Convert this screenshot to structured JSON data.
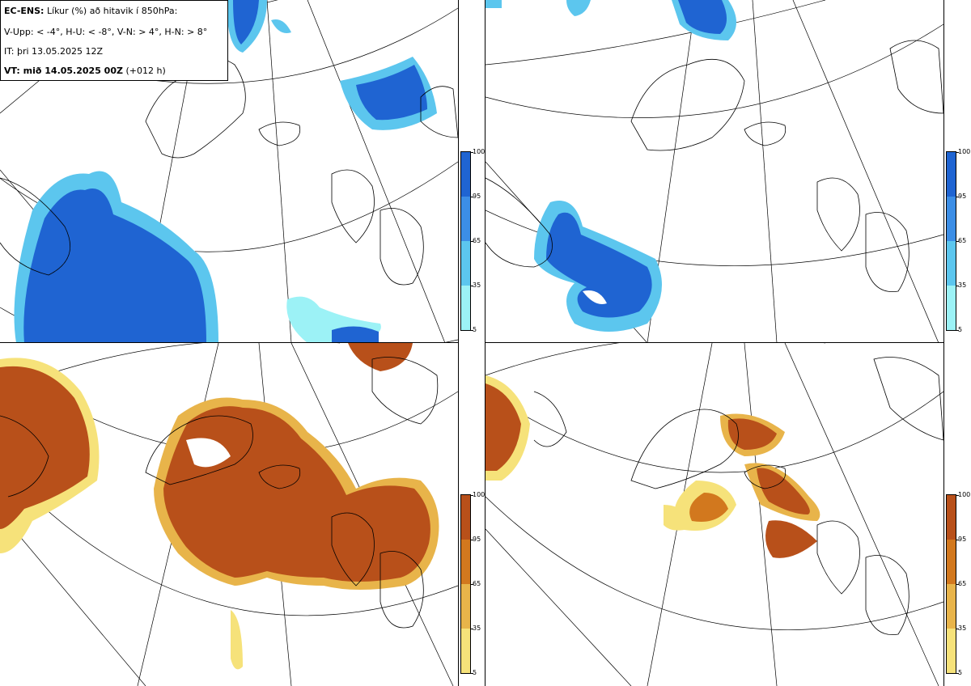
{
  "header": {
    "model": "EC-ENS:",
    "variable": "Líkur (%) að hitavik í 850hPa:",
    "thresholds": "V-Upp: < -4°, H-U: < -8°, V-N: > 4°, H-N: > 8°",
    "init_time": "IT: þri 13.05.2025 12Z",
    "valid_label": "VT: mið 14.05.2025 00Z",
    "lead_time": "(+012 h)"
  },
  "panels": [
    {
      "id": "V-Upp",
      "palette": "blue"
    },
    {
      "id": "H-U",
      "palette": "blue"
    },
    {
      "id": "V-N",
      "palette": "orange"
    },
    {
      "id": "H-N",
      "palette": "orange"
    }
  ],
  "legend_blue": {
    "labels": [
      "100",
      "95",
      "65",
      "35",
      "5"
    ],
    "colors": [
      "#1f64d2",
      "#3c8ee6",
      "#5cc6ee",
      "#9cf2f6",
      "#d4fcfc"
    ]
  },
  "legend_orange": {
    "labels": [
      "100",
      "95",
      "65",
      "35",
      "5"
    ],
    "colors": [
      "#b8501a",
      "#d2781e",
      "#e8b44a",
      "#f6e27a",
      "#fdfdb0"
    ]
  }
}
